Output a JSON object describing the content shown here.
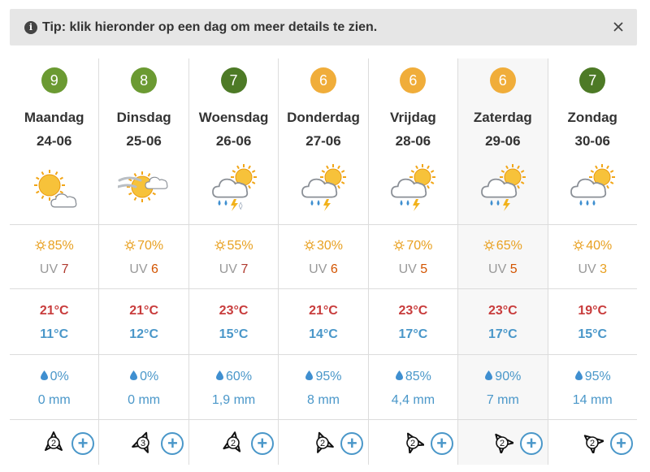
{
  "tip": {
    "text": "Tip: klik hieronder op een dag om meer details te zien.",
    "icon": "info-circle-icon",
    "close_icon": "close-icon"
  },
  "colors": {
    "badge_green_light": "#6b9a32",
    "badge_green_dark": "#4d7a26",
    "badge_orange": "#f0ad3a",
    "temp_max": "#c83c3c",
    "temp_min": "#4a97c9",
    "sun": "#e8a020",
    "accent_blue": "#4a97c9",
    "shaded_column": "#f7f7f7"
  },
  "days": [
    {
      "score": "9",
      "badge_color": "#6b9a32",
      "name": "Maandag",
      "date": "24-06",
      "icon": "sun-cloud-icon",
      "sun": "85%",
      "uv_label": "UV",
      "uv": "7",
      "uv_color": "#b03a2e",
      "tmax": "21°C",
      "tmin": "11°C",
      "rain_chance": "0%",
      "rain_amount": "0 mm",
      "wind_force": "2",
      "wind_rotation": 0,
      "shaded": false
    },
    {
      "score": "8",
      "badge_color": "#6b9a32",
      "name": "Dinsdag",
      "date": "25-06",
      "icon": "sun-haze-icon",
      "sun": "70%",
      "uv_label": "UV",
      "uv": "6",
      "uv_color": "#d35400",
      "tmax": "21°C",
      "tmin": "12°C",
      "rain_chance": "0%",
      "rain_amount": "0 mm",
      "wind_force": "3",
      "wind_rotation": 20,
      "shaded": false
    },
    {
      "score": "7",
      "badge_color": "#4d7a26",
      "name": "Woensdag",
      "date": "26-06",
      "icon": "thunder-rain-snow-icon",
      "sun": "55%",
      "uv_label": "UV",
      "uv": "7",
      "uv_color": "#b03a2e",
      "tmax": "23°C",
      "tmin": "15°C",
      "rain_chance": "60%",
      "rain_amount": "1,9 mm",
      "wind_force": "2",
      "wind_rotation": 10,
      "shaded": false
    },
    {
      "score": "6",
      "badge_color": "#f0ad3a",
      "name": "Donderdag",
      "date": "27-06",
      "icon": "thunder-rain-icon",
      "sun": "30%",
      "uv_label": "UV",
      "uv": "6",
      "uv_color": "#d35400",
      "tmax": "21°C",
      "tmin": "14°C",
      "rain_chance": "95%",
      "rain_amount": "8 mm",
      "wind_force": "2",
      "wind_rotation": -20,
      "shaded": false
    },
    {
      "score": "6",
      "badge_color": "#f0ad3a",
      "name": "Vrijdag",
      "date": "28-06",
      "icon": "thunder-rain-icon",
      "sun": "70%",
      "uv_label": "UV",
      "uv": "5",
      "uv_color": "#d35400",
      "tmax": "23°C",
      "tmin": "17°C",
      "rain_chance": "85%",
      "rain_amount": "4,4 mm",
      "wind_force": "2",
      "wind_rotation": -30,
      "shaded": false
    },
    {
      "score": "6",
      "badge_color": "#f0ad3a",
      "name": "Zaterdag",
      "date": "29-06",
      "icon": "thunder-rain-icon",
      "sun": "65%",
      "uv_label": "UV",
      "uv": "5",
      "uv_color": "#d35400",
      "tmax": "23°C",
      "tmin": "17°C",
      "rain_chance": "90%",
      "rain_amount": "7 mm",
      "wind_force": "2",
      "wind_rotation": -40,
      "shaded": true
    },
    {
      "score": "7",
      "badge_color": "#4d7a26",
      "name": "Zondag",
      "date": "30-06",
      "icon": "sun-rain-icon",
      "sun": "40%",
      "uv_label": "UV",
      "uv": "3",
      "uv_color": "#e8a020",
      "tmax": "19°C",
      "tmin": "15°C",
      "rain_chance": "95%",
      "rain_amount": "14 mm",
      "wind_force": "2",
      "wind_rotation": -50,
      "shaded": false
    }
  ],
  "details_button_label": "+"
}
